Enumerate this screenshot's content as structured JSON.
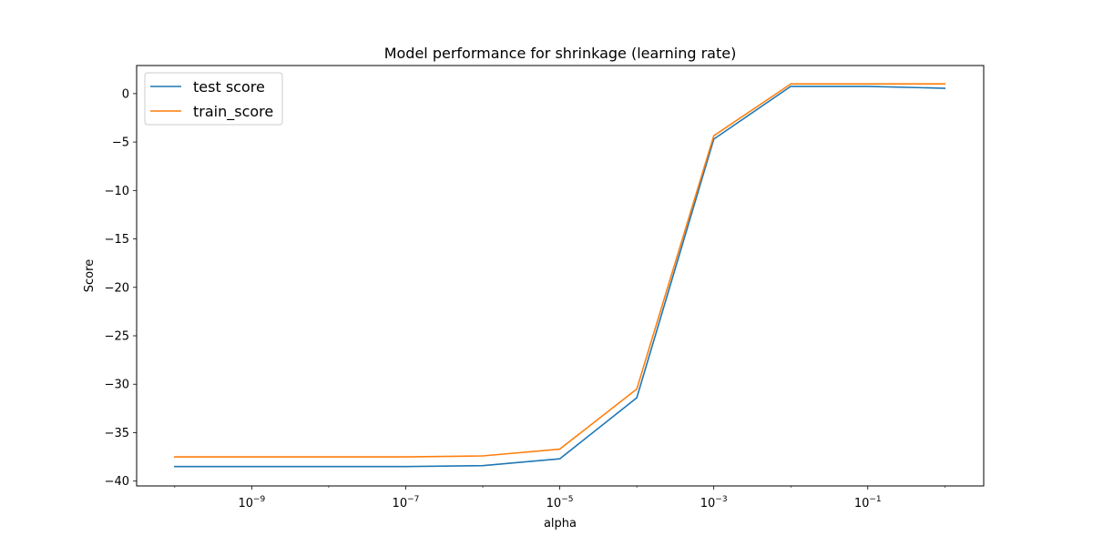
{
  "chart_data": {
    "type": "line",
    "title": "Model performance for shrinkage (learning rate)",
    "xlabel": "alpha",
    "ylabel": "Score",
    "xscale": "log",
    "xlim": [
      3.2e-11,
      3.2
    ],
    "ylim": [
      -40.5,
      2.9
    ],
    "xticks": [
      {
        "value": 1e-09,
        "base": "10",
        "exp": "−9"
      },
      {
        "value": 1e-07,
        "base": "10",
        "exp": "−7"
      },
      {
        "value": 1e-05,
        "base": "10",
        "exp": "−5"
      },
      {
        "value": 0.001,
        "base": "10",
        "exp": "−3"
      },
      {
        "value": 0.1,
        "base": "10",
        "exp": "−1"
      }
    ],
    "yticks": [
      {
        "value": 0,
        "label": "0"
      },
      {
        "value": -5,
        "label": "−5"
      },
      {
        "value": -10,
        "label": "−10"
      },
      {
        "value": -15,
        "label": "−15"
      },
      {
        "value": -20,
        "label": "−20"
      },
      {
        "value": -25,
        "label": "−25"
      },
      {
        "value": -30,
        "label": "−30"
      },
      {
        "value": -35,
        "label": "−35"
      },
      {
        "value": -40,
        "label": "−40"
      }
    ],
    "grid": false,
    "legend_position": "top-left",
    "x": [
      1e-10,
      1e-09,
      1e-08,
      1e-07,
      1e-06,
      1e-05,
      0.0001,
      0.001,
      0.01,
      0.1,
      1
    ],
    "series": [
      {
        "name": "test score",
        "color": "#1f77b4",
        "values": [
          -38.5,
          -38.5,
          -38.5,
          -38.5,
          -38.4,
          -37.7,
          -31.4,
          -4.7,
          0.75,
          0.75,
          0.55
        ]
      },
      {
        "name": "train_score",
        "color": "#ff7f0e",
        "values": [
          -37.5,
          -37.5,
          -37.5,
          -37.5,
          -37.4,
          -36.7,
          -30.5,
          -4.35,
          1.0,
          1.0,
          1.0
        ]
      }
    ]
  }
}
